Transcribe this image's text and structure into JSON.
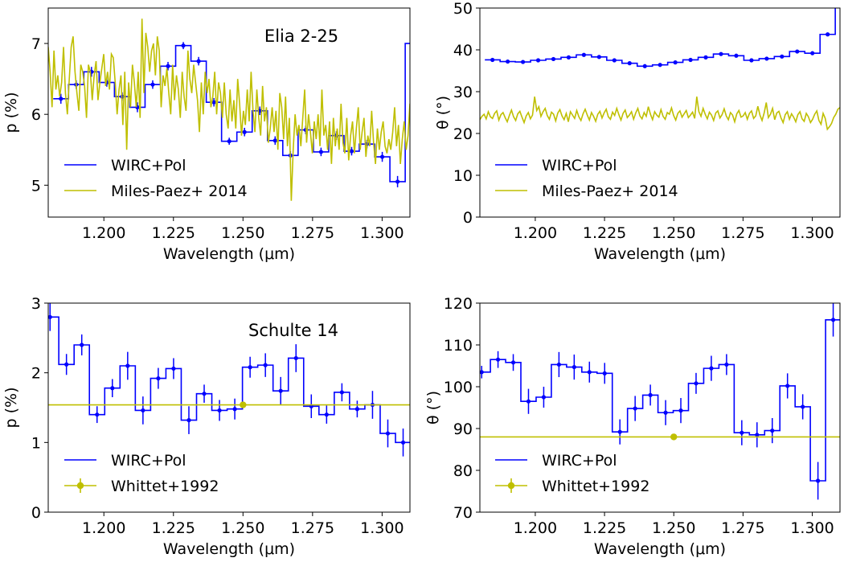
{
  "colors": {
    "wirc": "#0000ff",
    "ref": "#bfbf00",
    "axis": "#000000"
  },
  "chart_data": [
    {
      "type": "line",
      "id": "p_elia",
      "title": "Elia 2-25",
      "xlabel": "Wavelength (μm)",
      "ylabel": "p (%)",
      "xlim": [
        1.18,
        1.31
      ],
      "ylim": [
        4.55,
        7.5
      ],
      "x_ticks": [
        1.2,
        1.225,
        1.25,
        1.275,
        1.3
      ],
      "x_tick_labels": [
        "1.200",
        "1.225",
        "1.250",
        "1.275",
        "1.300"
      ],
      "y_ticks": [
        5,
        6,
        7
      ],
      "y_tick_labels": [
        "5",
        "6",
        "7"
      ],
      "legend": {
        "position": "lower-left",
        "entries": [
          "WIRC+Pol",
          "Miles-Paez+ 2014"
        ]
      },
      "series": [
        {
          "name": "WIRC+Pol",
          "style": "step",
          "x": [
            1.1818,
            1.1873,
            1.1928,
            1.1983,
            1.2038,
            1.2093,
            1.2148,
            1.2203,
            1.2258,
            1.2313,
            1.2368,
            1.2423,
            1.2478,
            1.2533,
            1.2588,
            1.2643,
            1.2698,
            1.2753,
            1.2808,
            1.2863,
            1.2918,
            1.2973,
            1.3028,
            1.3083
          ],
          "y": [
            6.22,
            6.42,
            6.6,
            6.45,
            6.25,
            6.1,
            6.42,
            6.68,
            6.97,
            6.75,
            6.17,
            5.62,
            5.75,
            6.05,
            5.63,
            5.42,
            5.78,
            5.47,
            5.7,
            5.48,
            5.58,
            5.4,
            5.05,
            7.0
          ],
          "err": [
            0.07,
            0.06,
            0.07,
            0.06,
            0.06,
            0.07,
            0.06,
            0.06,
            0.05,
            0.06,
            0.06,
            0.05,
            0.06,
            0.06,
            0.06,
            0.06,
            0.06,
            0.06,
            0.06,
            0.06,
            0.06,
            0.07,
            0.08,
            0.1
          ]
        },
        {
          "name": "Miles-Paez+ 2014",
          "style": "line",
          "x_start": 1.18,
          "x_end": 1.31,
          "y": [
            6.95,
            6.6,
            6.1,
            6.9,
            6.35,
            6.55,
            6.25,
            6.45,
            6.95,
            6.3,
            6.0,
            6.5,
            6.95,
            7.1,
            6.6,
            6.3,
            6.05,
            6.7,
            6.6,
            6.4,
            5.95,
            6.7,
            6.6,
            6.2,
            6.55,
            6.75,
            6.2,
            6.45,
            6.65,
            6.85,
            6.4,
            6.6,
            6.35,
            6.85,
            6.8,
            6.45,
            6.0,
            6.35,
            6.55,
            5.85,
            6.6,
            5.5,
            6.45,
            6.1,
            6.7,
            6.45,
            6.1,
            6.6,
            5.95,
            7.35,
            6.3,
            7.15,
            6.95,
            6.6,
            6.9,
            7.0,
            6.55,
            7.1,
            6.9,
            6.1,
            6.55,
            6.4,
            6.65,
            6.3,
            6.0,
            6.7,
            6.2,
            6.55,
            6.35,
            5.95,
            6.6,
            6.25,
            6.05,
            6.9,
            6.5,
            6.3,
            6.7,
            6.45,
            6.2,
            5.75,
            6.45,
            6.0,
            6.6,
            6.3,
            6.5,
            6.1,
            6.25,
            6.6,
            6.0,
            6.45,
            6.3,
            5.95,
            6.45,
            6.0,
            5.8,
            6.35,
            5.9,
            6.2,
            5.8,
            6.5,
            6.15,
            5.7,
            6.05,
            5.85,
            6.35,
            5.9,
            6.6,
            6.05,
            5.75,
            6.35,
            5.95,
            5.7,
            6.4,
            5.9,
            6.1,
            5.6,
            5.8,
            6.1,
            5.75,
            6.05,
            5.5,
            6.3,
            6.1,
            5.65,
            6.25,
            5.55,
            5.95,
            4.78,
            5.5,
            6.0,
            5.7,
            5.85,
            5.55,
            5.95,
            6.35,
            5.6,
            6.0,
            5.75,
            5.45,
            5.9,
            5.65,
            6.0,
            5.55,
            6.35,
            5.7,
            5.85,
            5.5,
            5.9,
            5.3,
            5.95,
            5.55,
            5.8,
            5.5,
            6.15,
            5.6,
            5.45,
            5.95,
            5.35,
            5.7,
            5.9,
            5.45,
            5.8,
            6.1,
            5.5,
            5.75,
            5.95,
            5.4,
            5.7,
            5.55,
            6.05,
            5.6,
            5.3,
            5.8,
            5.5,
            5.75,
            5.9,
            5.55,
            5.45,
            5.65,
            5.5,
            5.75,
            6.1,
            5.55,
            5.85,
            5.3,
            5.65,
            5.9,
            5.5,
            5.7,
            6.15
          ]
        }
      ]
    },
    {
      "type": "line",
      "id": "theta_elia",
      "xlabel": "Wavelength (μm)",
      "ylabel": "θ (°)",
      "xlim": [
        1.18,
        1.31
      ],
      "ylim": [
        0,
        50
      ],
      "x_ticks": [
        1.2,
        1.225,
        1.25,
        1.275,
        1.3
      ],
      "x_tick_labels": [
        "1.200",
        "1.225",
        "1.250",
        "1.275",
        "1.300"
      ],
      "y_ticks": [
        0,
        10,
        20,
        30,
        40,
        50
      ],
      "y_tick_labels": [
        "0",
        "10",
        "20",
        "30",
        "40",
        "50"
      ],
      "legend": {
        "position": "lower-left",
        "entries": [
          "WIRC+Pol",
          "Miles-Paez+ 2014"
        ]
      },
      "series": [
        {
          "name": "WIRC+Pol",
          "style": "step",
          "x": [
            1.1818,
            1.1873,
            1.1928,
            1.1983,
            1.2038,
            1.2093,
            1.2148,
            1.2203,
            1.2258,
            1.2313,
            1.2368,
            1.2423,
            1.2478,
            1.2533,
            1.2588,
            1.2643,
            1.2698,
            1.2753,
            1.2808,
            1.2863,
            1.2918,
            1.2973,
            1.3028,
            1.3083
          ],
          "y": [
            37.6,
            37.2,
            37.1,
            37.5,
            37.8,
            38.2,
            38.8,
            38.3,
            37.5,
            36.8,
            36.1,
            36.4,
            37.0,
            37.6,
            38.2,
            39.0,
            38.6,
            37.5,
            37.9,
            38.4,
            39.6,
            39.2,
            43.7,
            52.0
          ],
          "err": [
            0.3,
            0.3,
            0.3,
            0.3,
            0.3,
            0.3,
            0.3,
            0.3,
            0.3,
            0.3,
            0.3,
            0.3,
            0.3,
            0.3,
            0.3,
            0.3,
            0.3,
            0.3,
            0.3,
            0.3,
            0.3,
            0.3,
            0.4,
            0.5
          ]
        },
        {
          "name": "Miles-Paez+ 2014",
          "style": "line",
          "x_start": 1.18,
          "x_end": 1.31,
          "y": [
            23.3,
            24.1,
            24.6,
            23.5,
            25.2,
            24.0,
            23.6,
            24.8,
            25.4,
            23.2,
            24.5,
            25.0,
            23.8,
            22.8,
            24.3,
            25.6,
            24.0,
            23.1,
            24.7,
            25.3,
            23.9,
            22.6,
            24.2,
            25.0,
            23.5,
            24.4,
            28.8,
            25.5,
            26.4,
            24.1,
            25.2,
            26.0,
            24.3,
            23.4,
            25.1,
            24.6,
            23.0,
            24.9,
            25.7,
            24.2,
            23.3,
            24.8,
            22.8,
            25.2,
            24.4,
            23.6,
            25.5,
            24.0,
            23.1,
            24.7,
            25.8,
            24.4,
            23.2,
            25.0,
            24.1,
            22.9,
            24.6,
            25.3,
            23.7,
            24.9,
            25.8,
            24.0,
            23.4,
            25.1,
            24.3,
            26.0,
            24.5,
            23.2,
            24.8,
            25.6,
            23.8,
            24.4,
            25.2,
            23.4,
            24.9,
            26.0,
            24.2,
            23.5,
            25.0,
            24.1,
            26.4,
            24.6,
            23.3,
            25.2,
            24.4,
            23.9,
            25.7,
            24.1,
            23.4,
            25.0,
            24.6,
            26.1,
            24.3,
            23.2,
            24.8,
            25.4,
            23.9,
            24.7,
            25.5,
            23.8,
            24.4,
            25.1,
            23.6,
            28.8,
            25.2,
            24.1,
            26.0,
            24.6,
            23.5,
            25.1,
            24.4,
            23.1,
            24.9,
            25.4,
            23.7,
            24.5,
            25.9,
            24.2,
            23.3,
            25.0,
            24.4,
            22.8,
            24.7,
            25.5,
            23.9,
            24.2,
            25.0,
            23.4,
            24.8,
            25.4,
            23.6,
            24.2,
            26.5,
            24.4,
            23.1,
            24.9,
            27.4,
            23.8,
            24.6,
            26.0,
            23.3,
            24.9,
            25.3,
            23.7,
            22.6,
            24.5,
            25.2,
            23.4,
            24.7,
            23.9,
            22.8,
            24.5,
            25.2,
            23.5,
            22.9,
            24.8,
            24.0,
            22.6,
            23.4,
            24.6,
            25.4,
            23.1,
            22.2,
            24.8,
            23.6,
            21.0,
            21.6,
            22.4,
            23.8,
            24.6,
            25.8,
            26.2
          ]
        }
      ]
    },
    {
      "type": "line",
      "id": "p_schulte",
      "title": "Schulte 14",
      "xlabel": "Wavelength (μm)",
      "ylabel": "p (%)",
      "xlim": [
        1.18,
        1.31
      ],
      "ylim": [
        0,
        3
      ],
      "x_ticks": [
        1.2,
        1.225,
        1.25,
        1.275,
        1.3
      ],
      "x_tick_labels": [
        "1.200",
        "1.225",
        "1.250",
        "1.275",
        "1.300"
      ],
      "y_ticks": [
        0,
        1,
        2,
        3
      ],
      "y_tick_labels": [
        "0",
        "1",
        "2",
        "3"
      ],
      "legend": {
        "position": "lower-left",
        "entries": [
          "WIRC+Pol",
          "Whittet+1992"
        ]
      },
      "series": [
        {
          "name": "WIRC+Pol",
          "style": "step",
          "x": [
            1.1775,
            1.1838,
            1.1893,
            1.1948,
            1.2003,
            1.2058,
            1.2113,
            1.2168,
            1.2223,
            1.2278,
            1.2333,
            1.2388,
            1.2443,
            1.2498,
            1.2553,
            1.2608,
            1.2663,
            1.2718,
            1.2773,
            1.2828,
            1.2883,
            1.2938,
            1.2993,
            1.3048
          ],
          "y": [
            2.8,
            2.12,
            2.4,
            1.4,
            1.78,
            2.1,
            1.46,
            1.92,
            2.06,
            1.32,
            1.7,
            1.46,
            1.48,
            2.08,
            2.11,
            1.74,
            2.21,
            1.52,
            1.4,
            1.72,
            1.48,
            1.54,
            1.13,
            1.0
          ],
          "err": [
            0.2,
            0.15,
            0.15,
            0.12,
            0.13,
            0.2,
            0.2,
            0.15,
            0.15,
            0.2,
            0.13,
            0.15,
            0.15,
            0.15,
            0.17,
            0.2,
            0.2,
            0.17,
            0.13,
            0.13,
            0.12,
            0.2,
            0.2,
            0.2
          ]
        },
        {
          "name": "Whittet+1992",
          "style": "hline",
          "value": 1.54,
          "point_x": 1.25
        }
      ]
    },
    {
      "type": "line",
      "id": "theta_schulte",
      "xlabel": "Wavelength (μm)",
      "ylabel": "θ (°)",
      "xlim": [
        1.18,
        1.31
      ],
      "ylim": [
        70,
        120
      ],
      "x_ticks": [
        1.2,
        1.225,
        1.25,
        1.275,
        1.3
      ],
      "x_tick_labels": [
        "1.200",
        "1.225",
        "1.250",
        "1.275",
        "1.300"
      ],
      "y_ticks": [
        70,
        80,
        90,
        100,
        110,
        120
      ],
      "y_tick_labels": [
        "70",
        "80",
        "90",
        "100",
        "110",
        "120"
      ],
      "legend": {
        "position": "lower-left",
        "entries": [
          "WIRC+Pol",
          "Whittet+1992"
        ]
      },
      "series": [
        {
          "name": "WIRC+Pol",
          "style": "step",
          "x": [
            1.1775,
            1.1838,
            1.1893,
            1.1948,
            1.2003,
            1.2058,
            1.2113,
            1.2168,
            1.2223,
            1.2278,
            1.2333,
            1.2388,
            1.2443,
            1.2498,
            1.2553,
            1.2608,
            1.2663,
            1.2718,
            1.2773,
            1.2828,
            1.2883,
            1.2938,
            1.2993,
            1.3048,
            1.3103
          ],
          "y": [
            103.5,
            106.5,
            105.8,
            96.5,
            97.5,
            105.3,
            104.7,
            103.5,
            103.2,
            89.2,
            94.8,
            98.0,
            93.8,
            94.3,
            100.8,
            104.4,
            105.3,
            89.0,
            88.5,
            89.5,
            100.2,
            95.2,
            77.5,
            116.0,
            116.0
          ],
          "err": [
            1.5,
            2.0,
            2.0,
            3.0,
            2.5,
            3.0,
            3.0,
            2.5,
            2.5,
            3.0,
            3.0,
            2.5,
            3.0,
            3.0,
            2.5,
            3.0,
            2.5,
            3.0,
            3.0,
            3.0,
            3.0,
            3.0,
            4.5,
            4.0,
            4.0
          ]
        },
        {
          "name": "Whittet+1992",
          "style": "hline",
          "value": 88.0,
          "point_x": 1.25
        }
      ]
    }
  ]
}
